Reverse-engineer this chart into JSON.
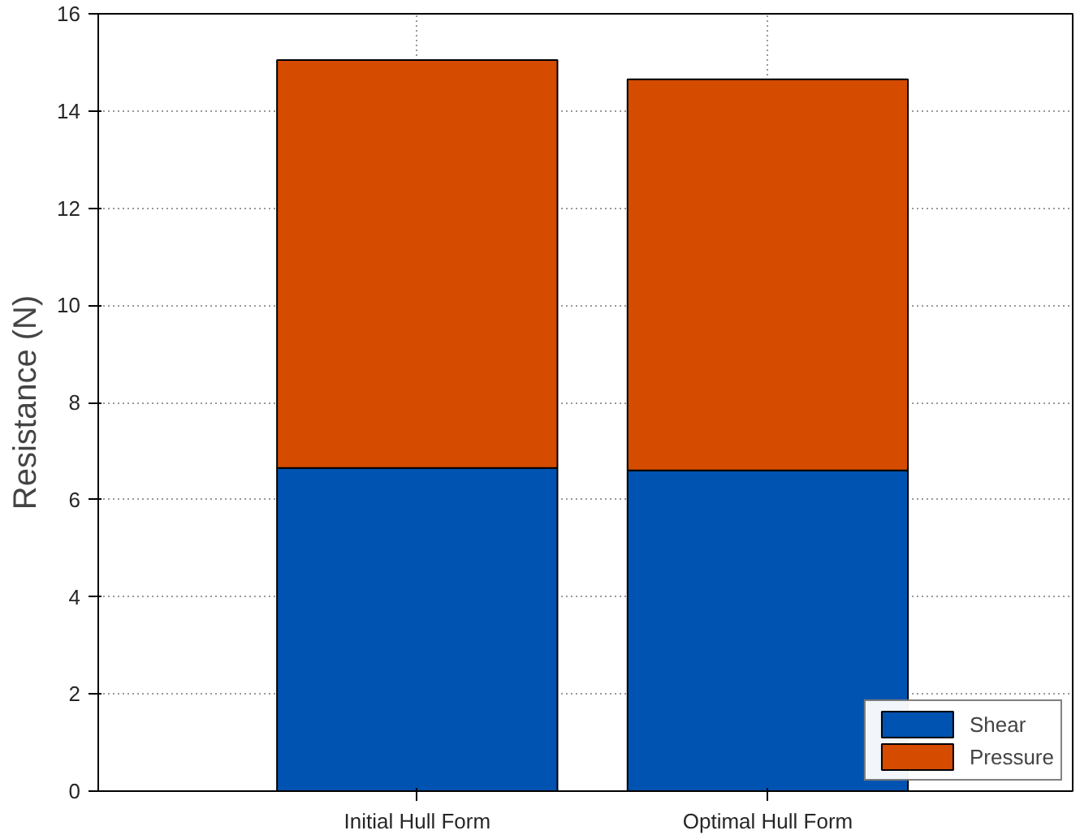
{
  "chart_data": {
    "type": "bar",
    "stacked": true,
    "ylabel": "Resistance (N)",
    "categories": [
      "Initial Hull Form",
      "Optimal Hull Form"
    ],
    "series": [
      {
        "name": "Shear",
        "color": "#0053b0",
        "values": [
          6.65,
          6.6
        ]
      },
      {
        "name": "Pressure",
        "color": "#d54b00",
        "values": [
          8.4,
          8.05
        ]
      }
    ],
    "ylim": [
      0,
      16
    ],
    "yticks": [
      0,
      2,
      4,
      6,
      8,
      10,
      12,
      14,
      16
    ],
    "grid": true,
    "legend": "bottom right"
  }
}
